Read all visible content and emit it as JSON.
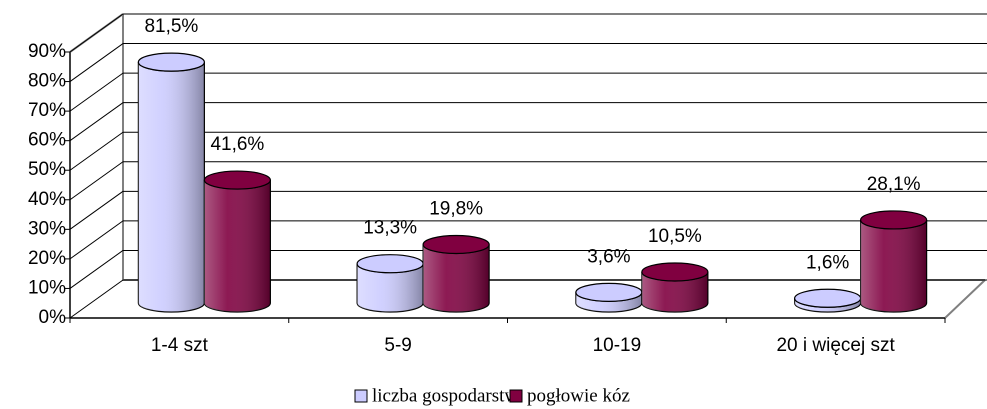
{
  "chart_data": {
    "type": "bar3d",
    "categories": [
      "1-4 szt",
      "5-9",
      "10-19",
      "20 i więcej szt"
    ],
    "series": [
      {
        "name": "liczba gospodarstw",
        "color": "#ccccff",
        "values": [
          81.5,
          13.3,
          3.6,
          1.6
        ],
        "value_labels": [
          "81,5%",
          "13,3%",
          "3,6%",
          "1,6%"
        ]
      },
      {
        "name": "pogłowie kóz",
        "color": "#800040",
        "values": [
          41.6,
          19.8,
          10.5,
          28.1
        ],
        "value_labels": [
          "41,6%",
          "19,8%",
          "10,5%",
          "28,1%"
        ]
      }
    ],
    "ylim": [
      0,
      90
    ],
    "yticks": [
      {
        "value": 0,
        "label": "0%"
      },
      {
        "value": 10,
        "label": "10%"
      },
      {
        "value": 20,
        "label": "20%"
      },
      {
        "value": 30,
        "label": "30%"
      },
      {
        "value": 40,
        "label": "40%"
      },
      {
        "value": 50,
        "label": "50%"
      },
      {
        "value": 60,
        "label": "60%"
      },
      {
        "value": 70,
        "label": "70%"
      },
      {
        "value": 80,
        "label": "80%"
      },
      {
        "value": 90,
        "label": "90%"
      }
    ],
    "grid": true,
    "legend": "bottom"
  }
}
